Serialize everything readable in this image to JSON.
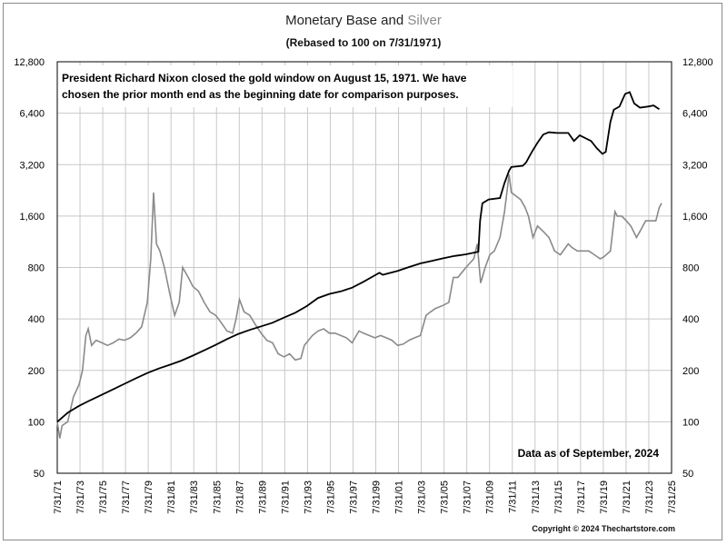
{
  "chart_data": {
    "type": "line",
    "title_part1": "Monetary Base and ",
    "title_part2": "Silver",
    "subtitle": "(Rebased to 100 on 7/31/1971)",
    "y_scale": "log2",
    "ylim": [
      50,
      12800
    ],
    "y_ticks": [
      "50",
      "100",
      "200",
      "400",
      "800",
      "1,600",
      "3,200",
      "6,400",
      "12,800"
    ],
    "y_tick_values": [
      50,
      100,
      200,
      400,
      800,
      1600,
      3200,
      6400,
      12800
    ],
    "xlim": [
      1971.58,
      2025.58
    ],
    "x_ticks": [
      "7/31/71",
      "7/31/73",
      "7/31/75",
      "7/31/77",
      "7/31/79",
      "7/31/81",
      "7/31/83",
      "7/31/85",
      "7/31/87",
      "7/31/89",
      "7/31/91",
      "7/31/93",
      "7/31/95",
      "7/31/97",
      "7/31/99",
      "7/31/01",
      "7/31/03",
      "7/31/05",
      "7/31/07",
      "7/31/09",
      "7/31/11",
      "7/31/13",
      "7/31/15",
      "7/31/17",
      "7/31/19",
      "7/31/21",
      "7/31/23",
      "7/31/25"
    ],
    "x_tick_values": [
      1971.58,
      1973.58,
      1975.58,
      1977.58,
      1979.58,
      1981.58,
      1983.58,
      1985.58,
      1987.58,
      1989.58,
      1991.58,
      1993.58,
      1995.58,
      1997.58,
      1999.58,
      2001.58,
      2003.58,
      2005.58,
      2007.58,
      2009.58,
      2011.58,
      2013.58,
      2015.58,
      2017.58,
      2019.58,
      2021.58,
      2023.58,
      2025.58
    ],
    "grid": true,
    "annotations": [
      "President Richard Nixon closed the gold window on August 15, 1971.  We have",
      "chosen the prior month end as the beginning date for comparison purposes.",
      "Data as of September, 2024"
    ],
    "copyright": "Copyright © 2024 Thechartstore.com",
    "series": [
      {
        "name": "Monetary Base",
        "color": "#000000",
        "x": [
          1971.58,
          1972.5,
          1973.5,
          1974.5,
          1975.5,
          1976.5,
          1977.5,
          1978.5,
          1979.5,
          1980.5,
          1981.5,
          1982.5,
          1983.5,
          1984.5,
          1985.5,
          1986.5,
          1987.5,
          1988.5,
          1989.5,
          1990.5,
          1991.5,
          1992.5,
          1993.5,
          1994.5,
          1995.5,
          1996.5,
          1997.5,
          1998.5,
          1999.5,
          1999.9,
          2000.2,
          2001.5,
          2002.5,
          2003.5,
          2004.5,
          2005.5,
          2006.5,
          2007.5,
          2008.6,
          2008.75,
          2008.95,
          2009.5,
          2010.5,
          2010.9,
          2011.3,
          2011.5,
          2012.5,
          2012.8,
          2013.3,
          2013.8,
          2014.3,
          2014.8,
          2015.5,
          2016.5,
          2017.0,
          2017.5,
          2018.5,
          2019.0,
          2019.5,
          2019.8,
          2020.2,
          2020.5,
          2021.0,
          2021.5,
          2021.9,
          2022.3,
          2022.8,
          2023.5,
          2024.0,
          2024.5
        ],
        "y": [
          100,
          113,
          124,
          134,
          144,
          155,
          167,
          180,
          193,
          205,
          216,
          228,
          244,
          262,
          282,
          305,
          327,
          345,
          362,
          380,
          407,
          435,
          475,
          530,
          560,
          580,
          610,
          660,
          720,
          745,
          725,
          765,
          805,
          845,
          875,
          905,
          935,
          955,
          990,
          1500,
          1900,
          2000,
          2040,
          2500,
          2950,
          3100,
          3150,
          3300,
          3800,
          4300,
          4800,
          4950,
          4900,
          4900,
          4400,
          4750,
          4400,
          4000,
          3700,
          3800,
          5700,
          6700,
          7000,
          8300,
          8500,
          7300,
          6900,
          7000,
          7100,
          6750
        ]
      },
      {
        "name": "Silver",
        "color": "#8a8a8a",
        "x": [
          1971.58,
          1971.8,
          1972.0,
          1972.5,
          1973.0,
          1973.5,
          1973.8,
          1974.1,
          1974.3,
          1974.6,
          1975.0,
          1975.5,
          1976.0,
          1976.5,
          1977.0,
          1977.5,
          1978.0,
          1978.5,
          1979.0,
          1979.5,
          1979.8,
          1980.05,
          1980.3,
          1980.6,
          1981.0,
          1981.5,
          1981.9,
          1982.3,
          1982.6,
          1983.1,
          1983.5,
          1984.0,
          1984.5,
          1985.0,
          1985.5,
          1986.0,
          1986.5,
          1987.0,
          1987.3,
          1987.6,
          1988.0,
          1988.5,
          1989.0,
          1989.5,
          1990.0,
          1990.5,
          1991.0,
          1991.5,
          1992.0,
          1992.5,
          1993.0,
          1993.3,
          1994.0,
          1994.5,
          1995.0,
          1995.5,
          1996.0,
          1996.5,
          1997.0,
          1997.5,
          1998.1,
          1998.5,
          1999.0,
          1999.5,
          2000.0,
          2000.5,
          2001.0,
          2001.5,
          2002.0,
          2002.5,
          2003.0,
          2003.5,
          2004.0,
          2004.4,
          2004.8,
          2005.5,
          2006.0,
          2006.4,
          2006.8,
          2007.5,
          2008.2,
          2008.5,
          2008.8,
          2009.2,
          2009.6,
          2010.0,
          2010.5,
          2010.9,
          2011.3,
          2011.5,
          2011.9,
          2012.3,
          2012.7,
          2013.0,
          2013.4,
          2013.8,
          2014.3,
          2014.8,
          2015.3,
          2015.8,
          2016.5,
          2016.8,
          2017.3,
          2017.8,
          2018.3,
          2018.8,
          2019.3,
          2019.6,
          2020.2,
          2020.6,
          2020.8,
          2021.2,
          2021.6,
          2022.0,
          2022.5,
          2022.8,
          2023.3,
          2023.8,
          2024.2,
          2024.5,
          2024.7
        ],
        "y": [
          100,
          80,
          95,
          100,
          140,
          165,
          200,
          320,
          350,
          280,
          300,
          290,
          280,
          290,
          305,
          300,
          310,
          330,
          360,
          500,
          900,
          2200,
          1100,
          1000,
          800,
          550,
          420,
          500,
          800,
          700,
          620,
          580,
          500,
          440,
          420,
          380,
          340,
          330,
          400,
          520,
          440,
          420,
          370,
          330,
          300,
          290,
          250,
          240,
          250,
          230,
          235,
          280,
          320,
          340,
          350,
          330,
          330,
          320,
          310,
          290,
          340,
          330,
          320,
          310,
          320,
          310,
          300,
          280,
          285,
          300,
          310,
          320,
          420,
          440,
          460,
          480,
          500,
          700,
          700,
          800,
          900,
          1100,
          650,
          800,
          950,
          1000,
          1200,
          1700,
          2800,
          2200,
          2100,
          2000,
          1800,
          1600,
          1200,
          1400,
          1300,
          1200,
          1000,
          950,
          1100,
          1050,
          1000,
          1000,
          1000,
          950,
          900,
          920,
          1000,
          1700,
          1600,
          1600,
          1500,
          1400,
          1200,
          1300,
          1500,
          1500,
          1500,
          1800,
          1900
        ]
      }
    ]
  }
}
